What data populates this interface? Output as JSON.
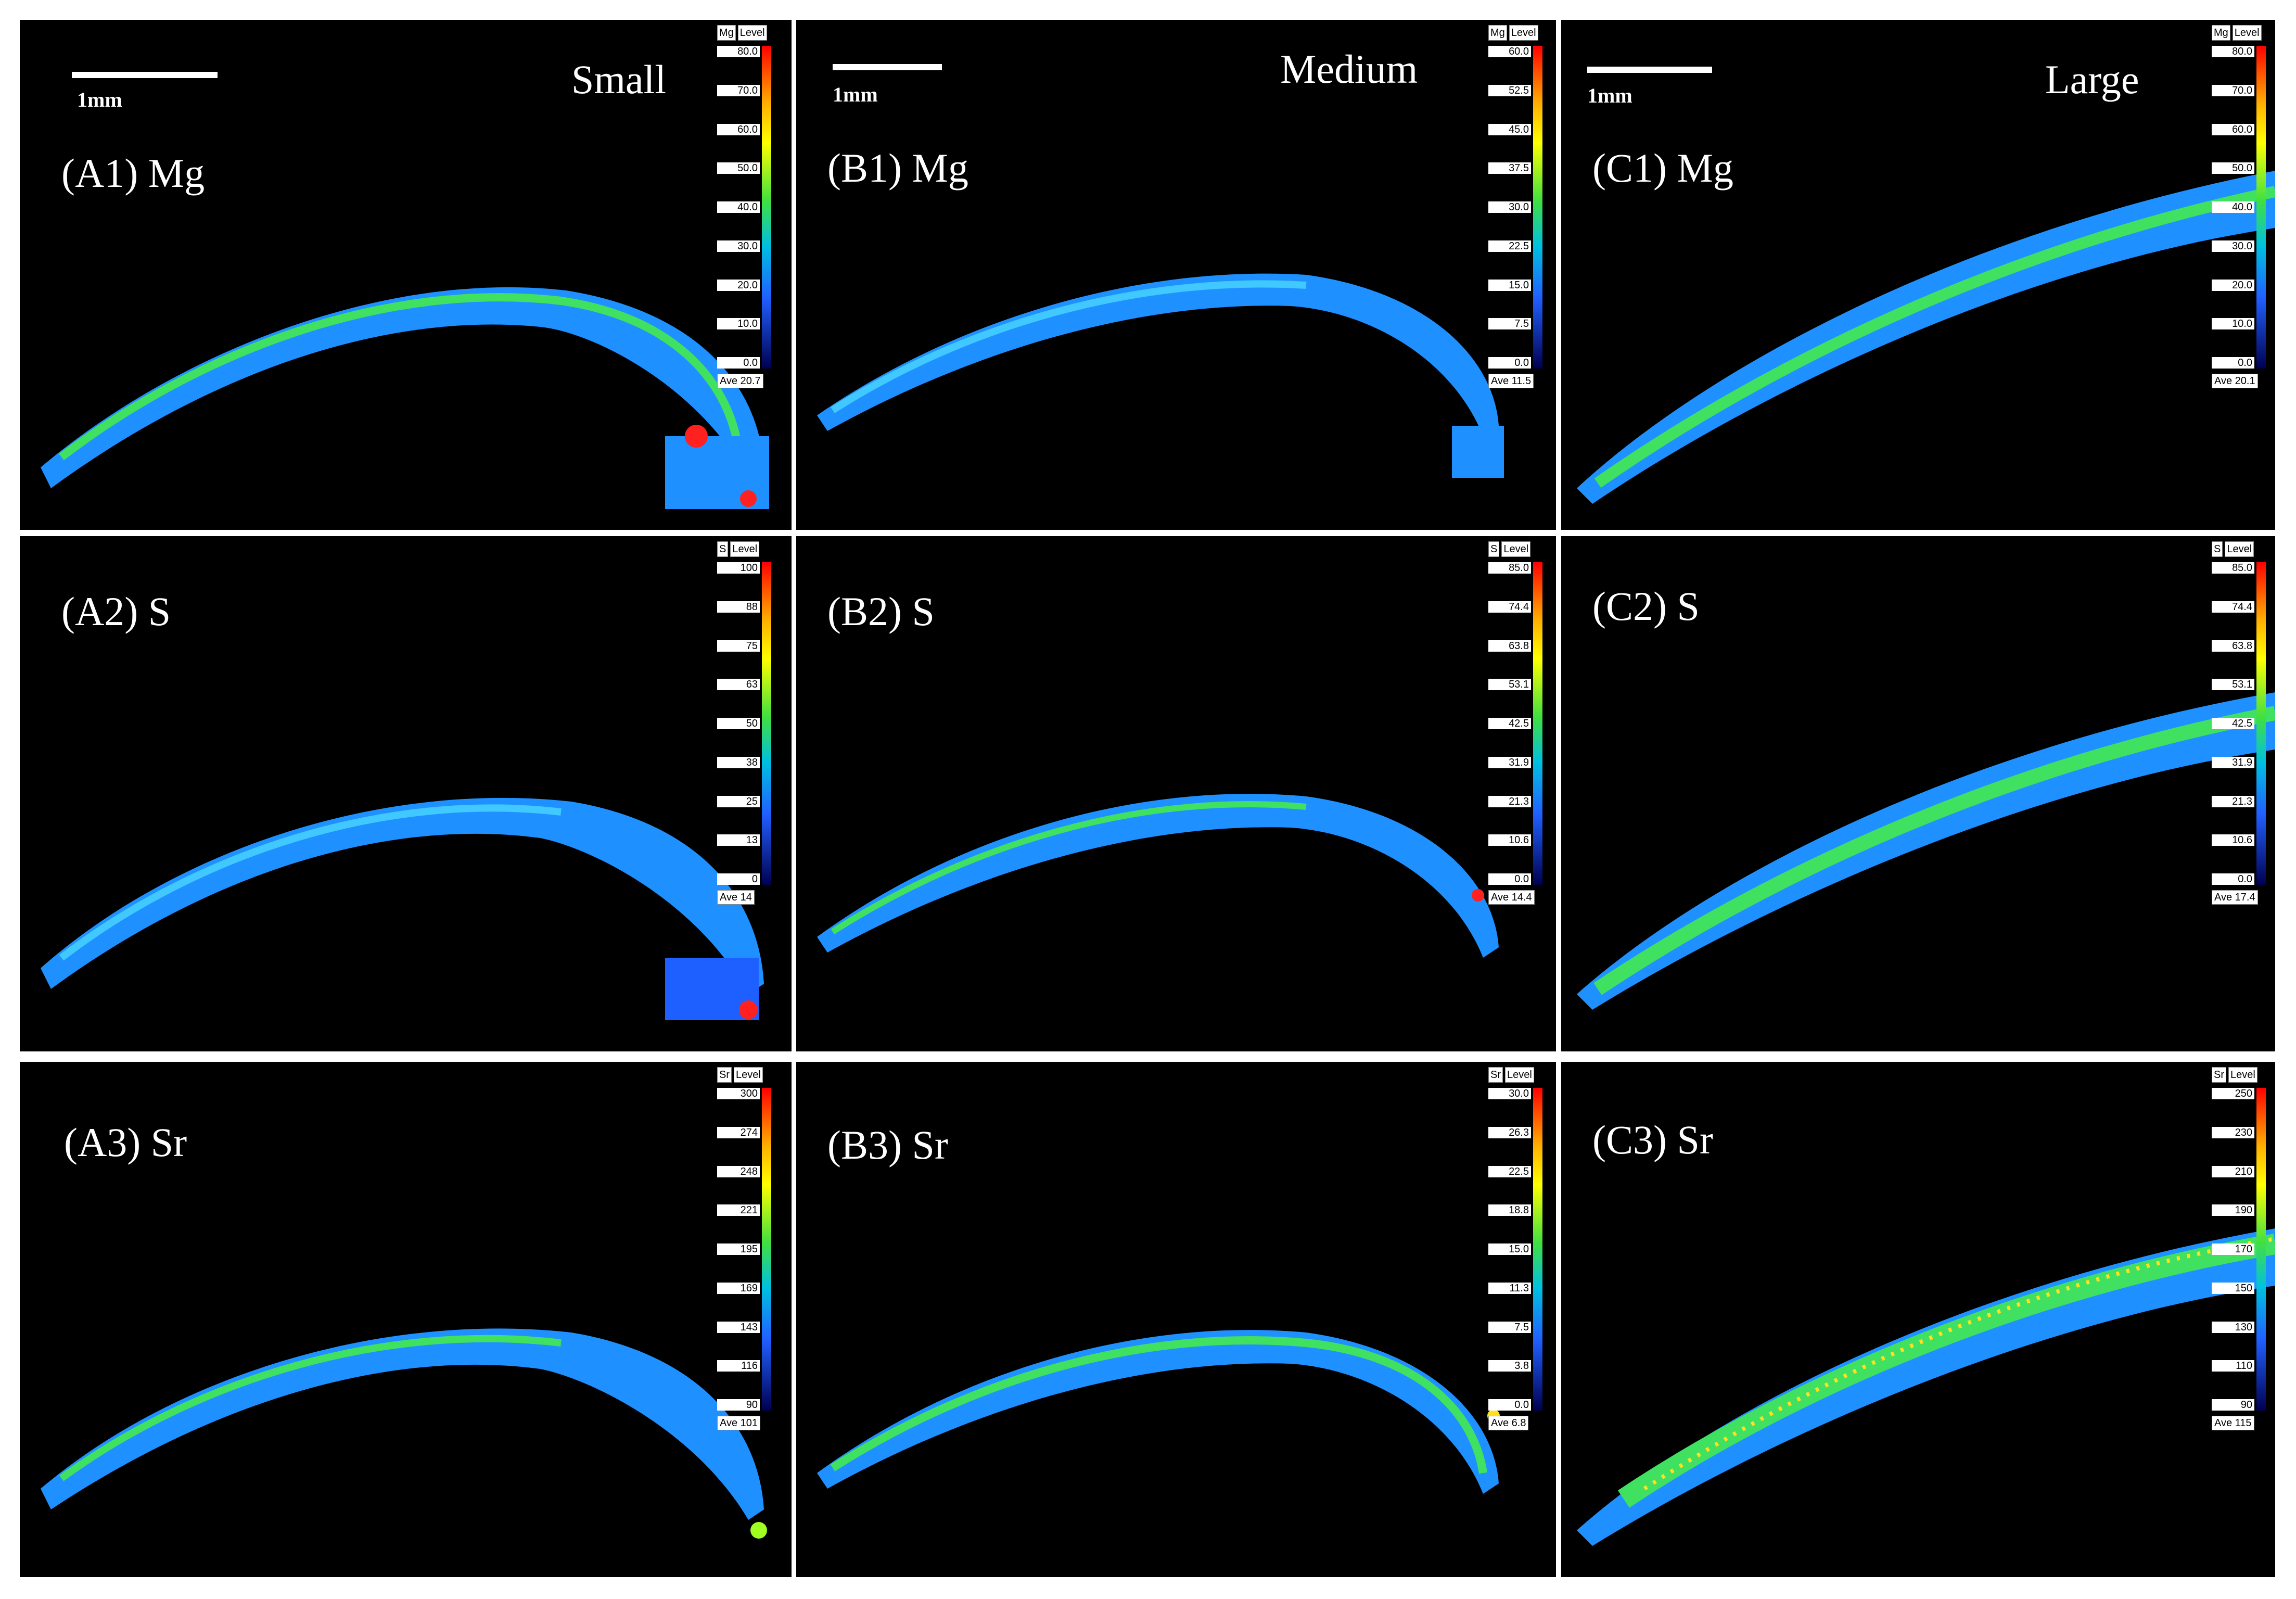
{
  "figure": {
    "columns": [
      {
        "id": "A",
        "size_label": "Small",
        "scalebar_label": "1mm"
      },
      {
        "id": "B",
        "size_label": "Medium",
        "scalebar_label": "1mm"
      },
      {
        "id": "C",
        "size_label": "Large",
        "scalebar_label": "1mm"
      }
    ],
    "panels": [
      {
        "label": "(A1) Mg",
        "element": "Mg",
        "level_label": "Level",
        "ticks": [
          "80.0",
          "70.0",
          "60.0",
          "50.0",
          "40.0",
          "30.0",
          "20.0",
          "10.0",
          "0.0"
        ],
        "ave": "Ave 20.7"
      },
      {
        "label": "(B1) Mg",
        "element": "Mg",
        "level_label": "Level",
        "ticks": [
          "60.0",
          "52.5",
          "45.0",
          "37.5",
          "30.0",
          "22.5",
          "15.0",
          "7.5",
          "0.0"
        ],
        "ave": "Ave 11.5"
      },
      {
        "label": "(C1) Mg",
        "element": "Mg",
        "level_label": "Level",
        "ticks": [
          "80.0",
          "70.0",
          "60.0",
          "50.0",
          "40.0",
          "30.0",
          "20.0",
          "10.0",
          "0.0"
        ],
        "ave": "Ave 20.1"
      },
      {
        "label": "(A2) S",
        "element": "S",
        "level_label": "Level",
        "ticks": [
          "100",
          "88",
          "75",
          "63",
          "50",
          "38",
          "25",
          "13",
          "0"
        ],
        "ave": "Ave 14"
      },
      {
        "label": "(B2) S",
        "element": "S",
        "level_label": "Level",
        "ticks": [
          "85.0",
          "74.4",
          "63.8",
          "53.1",
          "42.5",
          "31.9",
          "21.3",
          "10.6",
          "0.0"
        ],
        "ave": "Ave 14.4"
      },
      {
        "label": "(C2) S",
        "element": "S",
        "level_label": "Level",
        "ticks": [
          "85.0",
          "74.4",
          "63.8",
          "53.1",
          "42.5",
          "31.9",
          "21.3",
          "10.6",
          "0.0"
        ],
        "ave": "Ave 17.4"
      },
      {
        "label": "(A3) Sr",
        "element": "Sr",
        "level_label": "Level",
        "ticks": [
          "300",
          "274",
          "248",
          "221",
          "195",
          "169",
          "143",
          "116",
          "90"
        ],
        "ave": "Ave 101"
      },
      {
        "label": "(B3) Sr",
        "element": "Sr",
        "level_label": "Level",
        "ticks": [
          "30.0",
          "26.3",
          "22.5",
          "18.8",
          "15.0",
          "11.3",
          "7.5",
          "3.8",
          "0.0"
        ],
        "ave": "Ave 6.8"
      },
      {
        "label": "(C3) Sr",
        "element": "Sr",
        "level_label": "Level",
        "ticks": [
          "250",
          "230",
          "210",
          "190",
          "170",
          "150",
          "130",
          "110",
          "90"
        ],
        "ave": "Ave 115"
      }
    ]
  },
  "colors": {
    "background": "#000000",
    "shell_base": "#1e90ff",
    "shell_mid": "#40c8ff",
    "shell_high": "#40e060",
    "shell_hot": "#ff2020"
  }
}
